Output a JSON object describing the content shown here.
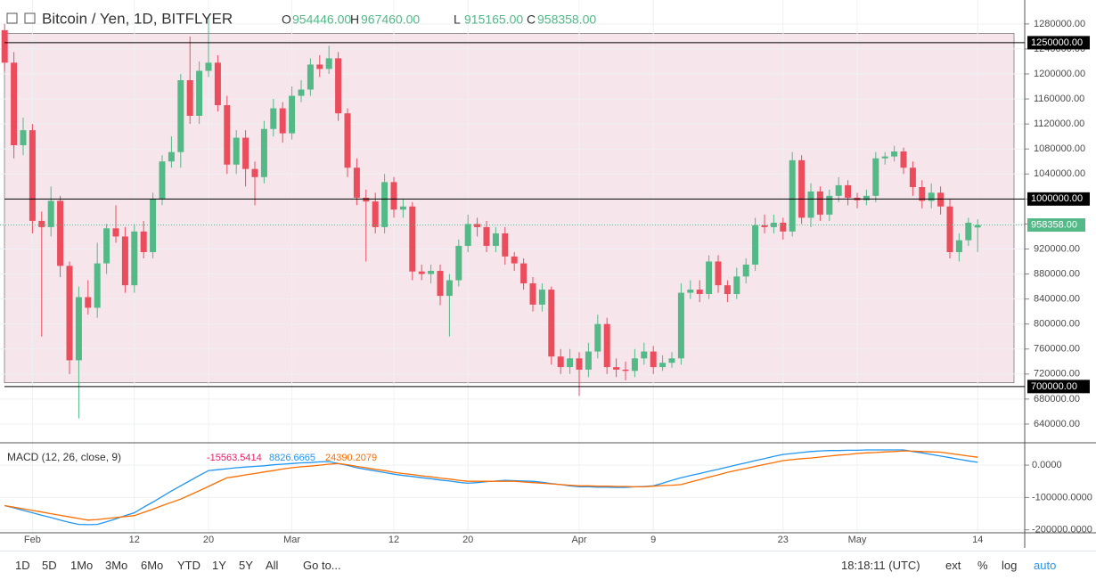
{
  "header": {
    "symbol": "Bitcoin / Yen, 1D, BITFLYER",
    "ohlc": [
      {
        "key": "O",
        "value": "954446.00"
      },
      {
        "key": "H",
        "value": "967460.00"
      },
      {
        "key": "L",
        "value": "915165.00"
      },
      {
        "key": "C",
        "value": "958358.00"
      }
    ],
    "ohlc_color": "#53b987"
  },
  "chart_data": [
    {
      "type": "candlestick",
      "categories": [
        null,
        null,
        null,
        "Feb",
        null,
        null,
        null,
        null,
        null,
        null,
        null,
        null,
        null,
        null,
        "12",
        null,
        null,
        null,
        null,
        null,
        null,
        null,
        "20",
        null,
        null,
        null,
        null,
        null,
        null,
        null,
        null,
        "Mar",
        null,
        null,
        null,
        null,
        null,
        null,
        null,
        null,
        null,
        null,
        "12",
        null,
        null,
        null,
        null,
        null,
        null,
        null,
        "20",
        null,
        null,
        null,
        null,
        null,
        null,
        null,
        null,
        null,
        null,
        null,
        "Apr",
        null,
        null,
        null,
        null,
        null,
        null,
        null,
        "9",
        null,
        null,
        null,
        null,
        null,
        null,
        null,
        null,
        null,
        null,
        null,
        null,
        null,
        "23",
        null,
        null,
        null,
        null,
        null,
        null,
        null,
        "May",
        null,
        null,
        null,
        null,
        null,
        null,
        null,
        null,
        null,
        null,
        null,
        null,
        "14"
      ],
      "candles": [
        [
          1270000,
          1280000,
          1205000,
          1218000
        ],
        [
          1218000,
          1235000,
          1065000,
          1086000
        ],
        [
          1086000,
          1130000,
          1070000,
          1110000
        ],
        [
          1110000,
          1120000,
          945000,
          965000
        ],
        [
          965000,
          980000,
          780000,
          955000
        ],
        [
          955000,
          1020000,
          940000,
          997000
        ],
        [
          997000,
          1005000,
          875000,
          893000
        ],
        [
          893000,
          900000,
          720000,
          742000
        ],
        [
          742000,
          860000,
          649000,
          843000
        ],
        [
          843000,
          870000,
          815000,
          826000
        ],
        [
          826000,
          930000,
          810000,
          897000
        ],
        [
          897000,
          960000,
          880000,
          953000
        ],
        [
          953000,
          990000,
          930000,
          940000
        ],
        [
          940000,
          955000,
          850000,
          862000
        ],
        [
          862000,
          960000,
          850000,
          948000
        ],
        [
          948000,
          965000,
          905000,
          915000
        ],
        [
          915000,
          1010000,
          905000,
          1000000
        ],
        [
          1000000,
          1070000,
          990000,
          1060000
        ],
        [
          1060000,
          1100000,
          1050000,
          1075000
        ],
        [
          1075000,
          1200000,
          1050000,
          1190000
        ],
        [
          1190000,
          1260000,
          1120000,
          1133000
        ],
        [
          1133000,
          1220000,
          1120000,
          1205000
        ],
        [
          1205000,
          1290000,
          1195000,
          1218000
        ],
        [
          1218000,
          1230000,
          1140000,
          1150000
        ],
        [
          1150000,
          1165000,
          1040000,
          1055000
        ],
        [
          1055000,
          1110000,
          1040000,
          1098000
        ],
        [
          1098000,
          1110000,
          1020000,
          1048000
        ],
        [
          1048000,
          1060000,
          990000,
          1035000
        ],
        [
          1035000,
          1125000,
          1025000,
          1112000
        ],
        [
          1112000,
          1160000,
          1100000,
          1145000
        ],
        [
          1145000,
          1155000,
          1090000,
          1105000
        ],
        [
          1105000,
          1180000,
          1095000,
          1165000
        ],
        [
          1165000,
          1190000,
          1155000,
          1175000
        ],
        [
          1175000,
          1225000,
          1165000,
          1215000
        ],
        [
          1215000,
          1230000,
          1195000,
          1208000
        ],
        [
          1208000,
          1245000,
          1200000,
          1225000
        ],
        [
          1225000,
          1235000,
          1125000,
          1137000
        ],
        [
          1137000,
          1145000,
          1035000,
          1050000
        ],
        [
          1050000,
          1065000,
          990000,
          1002000
        ],
        [
          1002000,
          1015000,
          900000,
          996000
        ],
        [
          996000,
          1010000,
          945000,
          955000
        ],
        [
          955000,
          1040000,
          945000,
          1027000
        ],
        [
          1027000,
          1035000,
          970000,
          983000
        ],
        [
          983000,
          1000000,
          970000,
          988000
        ],
        [
          988000,
          995000,
          870000,
          884000
        ],
        [
          884000,
          895000,
          870000,
          880000
        ],
        [
          880000,
          895000,
          865000,
          885000
        ],
        [
          885000,
          895000,
          830000,
          845000
        ],
        [
          845000,
          880000,
          780000,
          870000
        ],
        [
          870000,
          935000,
          860000,
          925000
        ],
        [
          925000,
          975000,
          915000,
          960000
        ],
        [
          960000,
          970000,
          940000,
          955000
        ],
        [
          955000,
          965000,
          915000,
          925000
        ],
        [
          925000,
          955000,
          915000,
          945000
        ],
        [
          945000,
          955000,
          895000,
          908000
        ],
        [
          908000,
          915000,
          885000,
          897000
        ],
        [
          897000,
          905000,
          855000,
          865000
        ],
        [
          865000,
          875000,
          820000,
          831000
        ],
        [
          831000,
          865000,
          820000,
          855000
        ],
        [
          855000,
          860000,
          735000,
          748000
        ],
        [
          748000,
          760000,
          720000,
          731000
        ],
        [
          731000,
          760000,
          720000,
          745000
        ],
        [
          745000,
          755000,
          685000,
          727000
        ],
        [
          727000,
          770000,
          715000,
          756000
        ],
        [
          756000,
          815000,
          745000,
          800000
        ],
        [
          800000,
          810000,
          720000,
          731000
        ],
        [
          731000,
          745000,
          715000,
          727000
        ],
        [
          727000,
          740000,
          710000,
          725000
        ],
        [
          725000,
          760000,
          715000,
          745000
        ],
        [
          745000,
          770000,
          735000,
          756000
        ],
        [
          756000,
          765000,
          720000,
          731000
        ],
        [
          731000,
          750000,
          725000,
          738000
        ],
        [
          738000,
          755000,
          730000,
          745000
        ],
        [
          745000,
          865000,
          735000,
          850000
        ],
        [
          850000,
          870000,
          840000,
          855000
        ],
        [
          855000,
          870000,
          835000,
          848000
        ],
        [
          848000,
          910000,
          840000,
          900000
        ],
        [
          900000,
          910000,
          850000,
          862000
        ],
        [
          862000,
          870000,
          835000,
          848000
        ],
        [
          848000,
          890000,
          840000,
          876000
        ],
        [
          876000,
          905000,
          865000,
          895000
        ],
        [
          895000,
          970000,
          885000,
          958000
        ],
        [
          958000,
          975000,
          945000,
          955000
        ],
        [
          955000,
          975000,
          945000,
          962000
        ],
        [
          962000,
          970000,
          935000,
          948000
        ],
        [
          948000,
          1075000,
          940000,
          1062000
        ],
        [
          1062000,
          1070000,
          960000,
          970000
        ],
        [
          970000,
          1025000,
          955000,
          1012000
        ],
        [
          1012000,
          1020000,
          965000,
          975000
        ],
        [
          975000,
          1015000,
          965000,
          1005000
        ],
        [
          1005000,
          1035000,
          995000,
          1022000
        ],
        [
          1022000,
          1030000,
          990000,
          1002000
        ],
        [
          1002000,
          1010000,
          985000,
          998000
        ],
        [
          998000,
          1015000,
          990000,
          1005000
        ],
        [
          1005000,
          1075000,
          995000,
          1065000
        ],
        [
          1065000,
          1075000,
          1055000,
          1068000
        ],
        [
          1068000,
          1085000,
          1060000,
          1076000
        ],
        [
          1076000,
          1082000,
          1040000,
          1050000
        ],
        [
          1050000,
          1060000,
          1005000,
          1019000
        ],
        [
          1019000,
          1030000,
          985000,
          997000
        ],
        [
          997000,
          1025000,
          985000,
          1010000
        ],
        [
          1010000,
          1020000,
          975000,
          988000
        ],
        [
          988000,
          1000000,
          905000,
          915000
        ],
        [
          915000,
          945000,
          900000,
          934000
        ],
        [
          934000,
          970000,
          925000,
          962000
        ],
        [
          954446,
          967460,
          915165,
          958358
        ]
      ],
      "up_color": "#53b987",
      "down_color": "#eb4d5c",
      "ylim": [
        610000,
        1314000
      ],
      "yticks": [
        {
          "value": 640000,
          "label": "640000.00"
        },
        {
          "value": 680000,
          "label": "680000.00"
        },
        {
          "value": 720000,
          "label": "720000.00"
        },
        {
          "value": 760000,
          "label": "760000.00"
        },
        {
          "value": 800000,
          "label": "800000.00"
        },
        {
          "value": 840000,
          "label": "840000.00"
        },
        {
          "value": 880000,
          "label": "880000.00"
        },
        {
          "value": 920000,
          "label": "920000.00"
        },
        {
          "value": 960000,
          "label": "960000.00"
        },
        {
          "value": 1000000,
          "label": "1000000.00"
        },
        {
          "value": 1040000,
          "label": "1040000.00"
        },
        {
          "value": 1080000,
          "label": "1080000.00"
        },
        {
          "value": 1120000,
          "label": "1120000.00"
        },
        {
          "value": 1160000,
          "label": "1160000.00"
        },
        {
          "value": 1200000,
          "label": "1200000.00"
        },
        {
          "value": 1240000,
          "label": "1240000.00"
        },
        {
          "value": 1280000,
          "label": "1280000.00"
        }
      ],
      "levels": [
        {
          "value": 1250000,
          "label": "1250000.00"
        },
        {
          "value": 1000000,
          "label": "1000000.00"
        },
        {
          "value": 700000,
          "label": "700000.00"
        }
      ],
      "last_price": {
        "value": 958358,
        "label": "958358.00"
      },
      "zone": [
        706000,
        1265000
      ],
      "zone_color": "#f6e6eb",
      "grid": true
    },
    {
      "type": "macd",
      "title": "MACD (12, 26, close, 9)",
      "legend_values": [
        {
          "value": -15563.5414,
          "color": "#e91e63"
        },
        {
          "value": 8826.6665,
          "color": "#2196f3"
        },
        {
          "value": 24390.2079,
          "color": "#ff6d00"
        }
      ],
      "series": [
        {
          "color": "#2196f3",
          "values": [
            -125000,
            -132000,
            -140000,
            -147000,
            -155000,
            -162000,
            -170000,
            -177000,
            -183000,
            -184000,
            -183000,
            -175000,
            -166000,
            -156000,
            -147000,
            -130000,
            -114000,
            -97000,
            -80000,
            -64000,
            -48000,
            -32000,
            -17000,
            -14000,
            -11000,
            -8000,
            -6000,
            -4000,
            -2000,
            1000,
            3000,
            5000,
            7000,
            8000,
            10000,
            11000,
            5000,
            -1000,
            -8000,
            -13000,
            -18000,
            -23000,
            -28000,
            -32000,
            -35000,
            -39000,
            -42000,
            -46000,
            -49000,
            -53000,
            -56000,
            -54000,
            -51000,
            -49000,
            -47000,
            -48000,
            -49000,
            -50000,
            -53000,
            -57000,
            -60000,
            -64000,
            -67000,
            -67000,
            -68000,
            -68000,
            -69000,
            -69000,
            -67000,
            -66000,
            -64000,
            -56000,
            -47000,
            -39000,
            -32000,
            -26000,
            -19000,
            -13000,
            -6000,
            1000,
            7000,
            14000,
            20000,
            27000,
            33000,
            36000,
            39000,
            42000,
            44000,
            45000,
            45000,
            46000,
            46000,
            47000,
            47000,
            47000,
            47000,
            47000,
            42000,
            38000,
            33000,
            28000,
            23000,
            18000,
            13000,
            8826.6665
          ]
        },
        {
          "color": "#ff6d00",
          "values": [
            -125000,
            -130000,
            -135000,
            -140000,
            -145000,
            -150000,
            -155000,
            -160000,
            -165000,
            -170000,
            -168000,
            -165000,
            -162000,
            -159000,
            -156000,
            -146000,
            -136000,
            -125000,
            -115000,
            -105000,
            -92000,
            -79000,
            -66000,
            -52000,
            -39000,
            -35000,
            -30000,
            -26000,
            -21000,
            -17000,
            -12000,
            -8000,
            -5000,
            -3000,
            0,
            3000,
            5000,
            1000,
            -4000,
            -8000,
            -13000,
            -17000,
            -22000,
            -26000,
            -29000,
            -33000,
            -36000,
            -40000,
            -43000,
            -47000,
            -50000,
            -50000,
            -50000,
            -50000,
            -50000,
            -50000,
            -52000,
            -54000,
            -56000,
            -58000,
            -60000,
            -62000,
            -64000,
            -64000,
            -65000,
            -65000,
            -66000,
            -66000,
            -67000,
            -67000,
            -65000,
            -63000,
            -62000,
            -60000,
            -52000,
            -45000,
            -37000,
            -30000,
            -22000,
            -16000,
            -10000,
            -4000,
            2000,
            8000,
            14000,
            17000,
            20000,
            22000,
            25000,
            28000,
            31000,
            33000,
            36000,
            38000,
            39000,
            41000,
            42000,
            44000,
            43000,
            42000,
            41000,
            40000,
            36000,
            32000,
            28000,
            24390.2079
          ]
        }
      ],
      "ylim": [
        -209000,
        69000
      ],
      "yticks": [
        {
          "value": 0,
          "label": "0.0000"
        },
        {
          "value": -100000,
          "label": "-100000.0000"
        },
        {
          "value": -200000,
          "label": "-200000.0000"
        }
      ]
    }
  ],
  "toolbar": {
    "ranges": [
      "1D",
      "5D",
      "1Mo",
      "3Mo",
      "6Mo",
      "YTD",
      "1Y",
      "5Y",
      "All"
    ],
    "goto": "Go to...",
    "time": "18:18:11 (UTC)",
    "options": [
      "ext",
      "%",
      "log",
      "auto"
    ]
  }
}
